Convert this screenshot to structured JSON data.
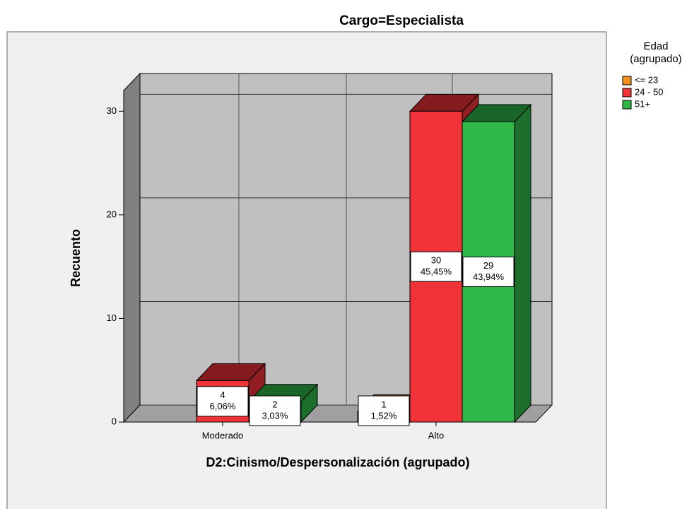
{
  "chart_data": {
    "type": "bar3d",
    "title": "Cargo=Especialista",
    "x_label": "D2:Cinismo/Despersonalización (agrupado)",
    "y_label": "Recuento",
    "legend_title": [
      "Edad",
      "(agrupado)"
    ],
    "categories": [
      "Moderado",
      "Alto"
    ],
    "series": [
      {
        "name": "<= 23",
        "color": "#f0901e",
        "values": [
          null,
          1
        ],
        "percent_labels": [
          null,
          "1,52%"
        ]
      },
      {
        "name": "24 - 50",
        "color": "#f03239",
        "values": [
          4,
          30
        ],
        "percent_labels": [
          "6,06%",
          "45,45%"
        ]
      },
      {
        "name": "51+",
        "color": "#2fb748",
        "values": [
          2,
          29
        ],
        "percent_labels": [
          "3,03%",
          "43,94%"
        ]
      }
    ],
    "ylim": [
      0,
      32
    ],
    "yticks": [
      0,
      10,
      20,
      30
    ],
    "grid": true,
    "legend": "right"
  }
}
